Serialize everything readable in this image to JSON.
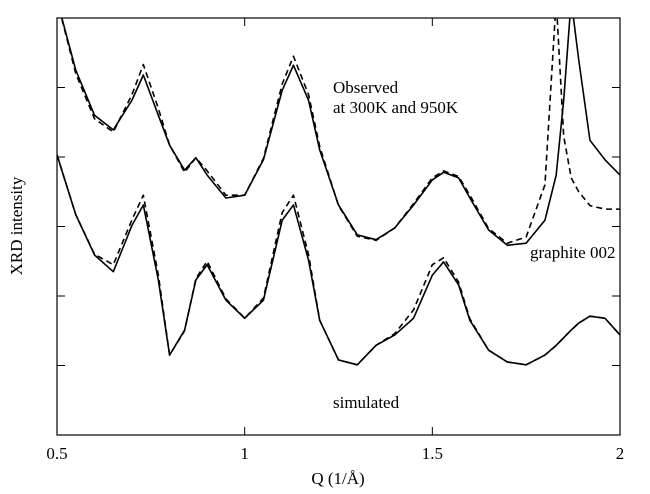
{
  "chart_data": {
    "type": "line",
    "xlabel": "Q (1/Å)",
    "ylabel": "XRD intensity",
    "annotations": [
      "Observed\nat 300K and 950K",
      "graphite 002",
      "simulated"
    ],
    "x": [
      0.5,
      0.55,
      0.6,
      0.65,
      0.7,
      0.73,
      0.77,
      0.8,
      0.84,
      0.87,
      0.9,
      0.95,
      1.0,
      1.05,
      1.1,
      1.13,
      1.17,
      1.2,
      1.25,
      1.3,
      1.35,
      1.4,
      1.45,
      1.5,
      1.53,
      1.57,
      1.6,
      1.65,
      1.7,
      1.75,
      1.8,
      1.83,
      1.85,
      1.87,
      1.89,
      1.92,
      1.96,
      2.0
    ],
    "series": [
      {
        "color": "#000000",
        "dash": false,
        "values": [
          6.26,
          5.25,
          4.6,
          4.39,
          4.82,
          5.18,
          4.6,
          4.17,
          3.81,
          3.99,
          3.74,
          3.41,
          3.45,
          3.96,
          4.96,
          5.32,
          4.82,
          4.1,
          3.31,
          2.88,
          2.81,
          2.98,
          3.31,
          3.67,
          3.78,
          3.7,
          3.41,
          2.95,
          2.73,
          2.76,
          3.09,
          3.74,
          4.82,
          6.26,
          5.4,
          4.24,
          3.96,
          3.74
        ]
      },
      {
        "color": "#000000",
        "dash": true,
        "values": [
          6.26,
          5.2,
          4.55,
          4.36,
          4.9,
          5.33,
          4.7,
          4.17,
          3.78,
          3.99,
          3.8,
          3.45,
          3.45,
          3.98,
          5.05,
          5.45,
          4.9,
          4.15,
          3.3,
          2.86,
          2.8,
          2.98,
          3.33,
          3.7,
          3.8,
          3.72,
          3.45,
          2.97,
          2.76,
          2.85,
          3.6,
          6.26,
          4.3,
          3.7,
          3.5,
          3.3,
          3.25,
          3.25
        ]
      },
      {
        "color": "#000000",
        "dash": false,
        "values": [
          4.03,
          3.17,
          2.59,
          2.35,
          3.02,
          3.31,
          2.23,
          1.15,
          1.51,
          2.23,
          2.45,
          1.94,
          1.68,
          1.94,
          3.09,
          3.31,
          2.52,
          1.65,
          1.08,
          1.01,
          1.29,
          1.44,
          1.68,
          2.3,
          2.49,
          2.16,
          1.65,
          1.22,
          1.05,
          1.01,
          1.15,
          1.29,
          1.4,
          1.51,
          1.61,
          1.71,
          1.68,
          1.44
        ]
      },
      {
        "color": "#000000",
        "dash": true,
        "values": [
          4.03,
          3.17,
          2.6,
          2.45,
          3.1,
          3.45,
          2.3,
          1.15,
          1.5,
          2.25,
          2.5,
          1.96,
          1.68,
          1.97,
          3.2,
          3.45,
          2.6,
          1.65,
          1.08,
          1.01,
          1.29,
          1.46,
          1.8,
          2.45,
          2.55,
          2.2,
          1.67,
          1.22,
          1.05,
          1.01,
          1.15,
          1.29,
          1.4,
          1.51,
          1.61,
          1.71,
          1.68,
          1.44
        ]
      }
    ],
    "xlim": [
      0.5,
      2
    ],
    "xticks": [
      0.5,
      1,
      1.5,
      2
    ],
    "ylim": [
      0,
      6
    ],
    "yticks": [
      0,
      1,
      2,
      3,
      4,
      5,
      6
    ]
  }
}
